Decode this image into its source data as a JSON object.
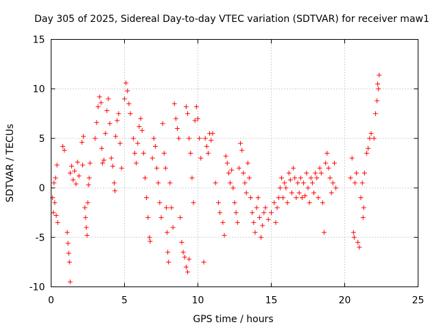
{
  "chart_data": {
    "type": "scatter",
    "title": "Day 305 of 2025, Sidereal Day-to-day VTEC variation (SDTVAR) for receiver maw1",
    "xlabel": "GPS time / hours",
    "ylabel": "SDTVAR / TECUs",
    "xlim": [
      0,
      25
    ],
    "ylim": [
      -10,
      15
    ],
    "xticks": [
      0,
      5,
      10,
      15,
      20,
      25
    ],
    "yticks": [
      -10,
      -5,
      0,
      5,
      10,
      15
    ],
    "grid": true,
    "marker": "+",
    "series": [
      {
        "name": "SDTVAR",
        "color": "#ff0000",
        "points": [
          [
            0.1,
            -1.0
          ],
          [
            0.15,
            -2.5
          ],
          [
            0.2,
            0.5
          ],
          [
            0.25,
            -1.5
          ],
          [
            0.3,
            1.0
          ],
          [
            0.35,
            -2.8
          ],
          [
            0.4,
            2.3
          ],
          [
            0.45,
            -3.5
          ],
          [
            0.8,
            4.2
          ],
          [
            0.9,
            3.8
          ],
          [
            1.1,
            -4.5
          ],
          [
            1.15,
            -5.6
          ],
          [
            1.2,
            -6.6
          ],
          [
            1.25,
            -7.5
          ],
          [
            1.3,
            -9.5
          ],
          [
            1.3,
            1.5
          ],
          [
            1.4,
            2.2
          ],
          [
            1.5,
            0.8
          ],
          [
            1.6,
            1.7
          ],
          [
            1.7,
            0.4
          ],
          [
            1.8,
            2.6
          ],
          [
            1.9,
            1.2
          ],
          [
            2.1,
            4.6
          ],
          [
            2.2,
            5.2
          ],
          [
            2.15,
            2.3
          ],
          [
            2.3,
            -2.0
          ],
          [
            2.35,
            -3.0
          ],
          [
            2.4,
            -4.0
          ],
          [
            2.45,
            -4.8
          ],
          [
            2.5,
            -1.5
          ],
          [
            2.55,
            0.3
          ],
          [
            2.6,
            1.0
          ],
          [
            2.65,
            2.5
          ],
          [
            3.0,
            5.0
          ],
          [
            3.1,
            6.6
          ],
          [
            3.2,
            8.2
          ],
          [
            3.3,
            9.2
          ],
          [
            3.4,
            8.6
          ],
          [
            3.45,
            4.0
          ],
          [
            3.5,
            2.5
          ],
          [
            3.6,
            2.8
          ],
          [
            3.7,
            5.5
          ],
          [
            3.8,
            7.8
          ],
          [
            3.9,
            9.0
          ],
          [
            4.0,
            6.5
          ],
          [
            4.1,
            3.0
          ],
          [
            4.2,
            2.2
          ],
          [
            4.3,
            0.5
          ],
          [
            4.35,
            -0.3
          ],
          [
            4.4,
            5.2
          ],
          [
            4.5,
            6.8
          ],
          [
            4.6,
            7.5
          ],
          [
            4.7,
            4.5
          ],
          [
            4.8,
            2.0
          ],
          [
            5.0,
            9.0
          ],
          [
            5.1,
            10.6
          ],
          [
            5.2,
            9.8
          ],
          [
            5.3,
            8.5
          ],
          [
            5.4,
            7.5
          ],
          [
            5.6,
            5.0
          ],
          [
            5.7,
            3.5
          ],
          [
            5.8,
            2.5
          ],
          [
            5.9,
            4.5
          ],
          [
            6.0,
            6.2
          ],
          [
            6.1,
            7.0
          ],
          [
            6.2,
            5.8
          ],
          [
            6.3,
            3.5
          ],
          [
            6.4,
            1.0
          ],
          [
            6.5,
            -1.0
          ],
          [
            6.6,
            -3.0
          ],
          [
            6.7,
            -5.0
          ],
          [
            6.75,
            -5.4
          ],
          [
            6.9,
            3.0
          ],
          [
            7.0,
            5.0
          ],
          [
            7.1,
            4.2
          ],
          [
            7.2,
            2.0
          ],
          [
            7.3,
            0.5
          ],
          [
            7.4,
            -1.5
          ],
          [
            7.5,
            -3.0
          ],
          [
            7.6,
            6.5
          ],
          [
            7.7,
            3.5
          ],
          [
            7.8,
            2.0
          ],
          [
            7.85,
            -2.0
          ],
          [
            7.9,
            -4.5
          ],
          [
            7.95,
            -6.5
          ],
          [
            8.0,
            -7.5
          ],
          [
            8.1,
            0.5
          ],
          [
            8.2,
            -2.0
          ],
          [
            8.3,
            -4.0
          ],
          [
            8.4,
            8.5
          ],
          [
            8.5,
            7.0
          ],
          [
            8.6,
            6.0
          ],
          [
            8.7,
            5.0
          ],
          [
            8.8,
            -3.0
          ],
          [
            8.9,
            -5.5
          ],
          [
            9.0,
            -6.5
          ],
          [
            9.1,
            -7.0
          ],
          [
            9.2,
            -8.0
          ],
          [
            9.3,
            -8.5
          ],
          [
            9.4,
            -7.2
          ],
          [
            9.2,
            8.2
          ],
          [
            9.3,
            7.5
          ],
          [
            9.4,
            5.0
          ],
          [
            9.5,
            3.5
          ],
          [
            9.6,
            1.0
          ],
          [
            9.7,
            -1.5
          ],
          [
            9.8,
            6.8
          ],
          [
            9.9,
            8.2
          ],
          [
            10.0,
            7.0
          ],
          [
            10.1,
            5.0
          ],
          [
            10.2,
            3.0
          ],
          [
            10.4,
            -7.5
          ],
          [
            10.5,
            5.0
          ],
          [
            10.6,
            4.2
          ],
          [
            10.7,
            3.5
          ],
          [
            10.8,
            5.5
          ],
          [
            10.9,
            4.8
          ],
          [
            11.0,
            5.5
          ],
          [
            11.2,
            0.5
          ],
          [
            11.4,
            -1.5
          ],
          [
            11.5,
            -2.5
          ],
          [
            11.7,
            -3.5
          ],
          [
            11.8,
            -4.8
          ],
          [
            11.9,
            3.2
          ],
          [
            12.0,
            2.5
          ],
          [
            12.1,
            1.5
          ],
          [
            12.2,
            0.5
          ],
          [
            12.3,
            1.8
          ],
          [
            12.4,
            0.0
          ],
          [
            12.5,
            -1.5
          ],
          [
            12.6,
            -2.5
          ],
          [
            12.7,
            -3.5
          ],
          [
            12.8,
            2.0
          ],
          [
            12.9,
            4.5
          ],
          [
            13.0,
            3.8
          ],
          [
            13.1,
            1.5
          ],
          [
            13.2,
            0.5
          ],
          [
            13.3,
            -0.5
          ],
          [
            13.4,
            2.5
          ],
          [
            13.5,
            1.0
          ],
          [
            13.6,
            -1.0
          ],
          [
            13.7,
            -2.5
          ],
          [
            13.8,
            -3.5
          ],
          [
            13.9,
            -4.5
          ],
          [
            14.0,
            -2.0
          ],
          [
            14.1,
            -1.0
          ],
          [
            14.2,
            -3.0
          ],
          [
            14.3,
            -5.0
          ],
          [
            14.4,
            -3.8
          ],
          [
            14.5,
            -2.5
          ],
          [
            14.6,
            -2.0
          ],
          [
            14.8,
            -3.2
          ],
          [
            15.0,
            -2.5
          ],
          [
            15.2,
            -1.5
          ],
          [
            15.3,
            -3.5
          ],
          [
            15.4,
            -2.0
          ],
          [
            15.5,
            -1.0
          ],
          [
            15.6,
            0.0
          ],
          [
            15.7,
            1.0
          ],
          [
            15.8,
            -1.0
          ],
          [
            15.9,
            0.5
          ],
          [
            16.0,
            0.0
          ],
          [
            16.1,
            -1.5
          ],
          [
            16.2,
            1.5
          ],
          [
            16.3,
            0.8
          ],
          [
            16.4,
            -0.5
          ],
          [
            16.5,
            2.0
          ],
          [
            16.6,
            1.0
          ],
          [
            16.7,
            -1.0
          ],
          [
            16.8,
            0.5
          ],
          [
            16.9,
            -0.5
          ],
          [
            17.0,
            1.0
          ],
          [
            17.1,
            -1.0
          ],
          [
            17.2,
            0.5
          ],
          [
            17.3,
            -0.8
          ],
          [
            17.4,
            1.5
          ],
          [
            17.5,
            0.0
          ],
          [
            17.6,
            -1.5
          ],
          [
            17.7,
            1.0
          ],
          [
            17.8,
            0.5
          ],
          [
            17.9,
            -0.5
          ],
          [
            18.0,
            1.5
          ],
          [
            18.1,
            1.0
          ],
          [
            18.2,
            -1.0
          ],
          [
            18.3,
            2.0
          ],
          [
            18.4,
            1.5
          ],
          [
            18.5,
            -1.5
          ],
          [
            18.6,
            -4.5
          ],
          [
            18.7,
            2.5
          ],
          [
            18.8,
            3.5
          ],
          [
            18.9,
            2.0
          ],
          [
            19.0,
            1.0
          ],
          [
            19.1,
            -0.5
          ],
          [
            19.2,
            0.5
          ],
          [
            19.3,
            2.5
          ],
          [
            19.4,
            0.0
          ],
          [
            20.4,
            1.0
          ],
          [
            20.5,
            3.0
          ],
          [
            20.6,
            -4.5
          ],
          [
            20.65,
            -5.0
          ],
          [
            20.7,
            0.5
          ],
          [
            20.8,
            1.5
          ],
          [
            20.9,
            -5.5
          ],
          [
            21.0,
            -6.0
          ],
          [
            21.1,
            -1.0
          ],
          [
            21.2,
            0.5
          ],
          [
            21.25,
            -3.0
          ],
          [
            21.3,
            -2.0
          ],
          [
            21.35,
            1.5
          ],
          [
            21.5,
            3.5
          ],
          [
            21.6,
            4.0
          ],
          [
            21.7,
            5.0
          ],
          [
            21.8,
            5.5
          ],
          [
            22.0,
            5.0
          ],
          [
            22.1,
            7.5
          ],
          [
            22.2,
            8.8
          ],
          [
            22.25,
            10.5
          ],
          [
            22.3,
            10.0
          ],
          [
            22.35,
            11.4
          ]
        ]
      }
    ]
  }
}
